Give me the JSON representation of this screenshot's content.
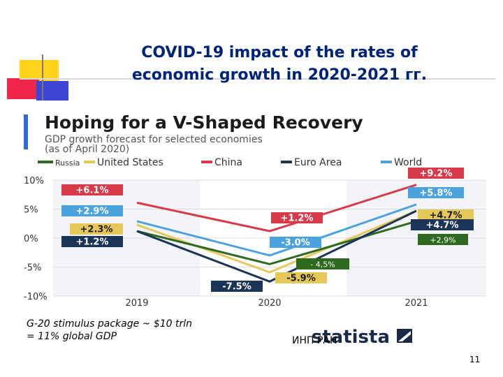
{
  "slide": {
    "title_line1": "COVID-19 impact of the rates of",
    "title_line2": "economic growth in 2020-2021 гг.",
    "footnote_line1": "G-20 stimulus package ~ $10 trln",
    "footnote_line2": "= 11% global GDP",
    "source_credit": "ИНП РАН",
    "page_number": "11",
    "accent_colors": {
      "title": "#00237a",
      "yellow": "#ffd21c",
      "red": "#f0264a",
      "blue": "#3c46d2",
      "bar": "#7a7a7a"
    }
  },
  "chart_data": {
    "type": "line",
    "title": "Hoping for a V-Shaped Recovery",
    "subtitle_line1": "GDP growth forecast for selected economies",
    "subtitle_line2": "(as of April 2020)",
    "categories": [
      "2019",
      "2020",
      "2021"
    ],
    "ylim": [
      -10,
      10
    ],
    "yticks": [
      10,
      5,
      0,
      -5,
      -10
    ],
    "ytick_labels": [
      "10%",
      "5%",
      "0%",
      "-5%",
      "-10%"
    ],
    "brand": "statista",
    "series": [
      {
        "key": "russia",
        "name": "Russia",
        "color": "#2d6a1f",
        "values": [
          1.2,
          -4.5,
          2.9
        ],
        "labels": [
          "",
          "- 4,5%",
          "+2,9%"
        ]
      },
      {
        "key": "us",
        "name": "United States",
        "color": "#e5c75a",
        "values": [
          2.3,
          -5.9,
          4.7
        ],
        "labels": [
          "+2.3%",
          "-5.9%",
          "+4.7%"
        ]
      },
      {
        "key": "china",
        "name": "China",
        "color": "#d93a4a",
        "values": [
          6.1,
          1.2,
          9.2
        ],
        "labels": [
          "+6.1%",
          "+1.2%",
          "+9.2%"
        ]
      },
      {
        "key": "euro",
        "name": "Euro Area",
        "color": "#1b3458",
        "values": [
          1.2,
          -7.5,
          4.7
        ],
        "labels": [
          "+1.2%",
          "-7.5%",
          "+4.7%"
        ]
      },
      {
        "key": "world",
        "name": "World",
        "color": "#4aa3df",
        "values": [
          2.9,
          -3.0,
          5.8
        ],
        "labels": [
          "+2.9%",
          "-3.0%",
          "+5.8%"
        ]
      }
    ]
  }
}
